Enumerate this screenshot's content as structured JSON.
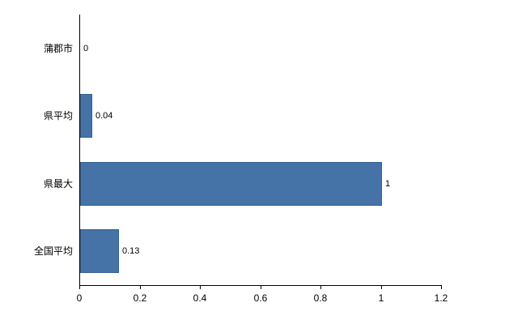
{
  "chart_data": {
    "type": "bar",
    "orientation": "horizontal",
    "title": "",
    "xlabel": "",
    "ylabel": "",
    "categories": [
      "蒲郡市",
      "県平均",
      "県最大",
      "全国平均"
    ],
    "values": [
      0,
      0.04,
      1,
      0.13
    ],
    "value_labels": [
      "0",
      "0.04",
      "1",
      "0.13"
    ],
    "xlim": [
      0,
      1.2
    ],
    "xticks": [
      0,
      0.2,
      0.4,
      0.6,
      0.8,
      1,
      1.2
    ],
    "xtick_labels": [
      "0",
      "0.2",
      "0.4",
      "0.6",
      "0.8",
      "1",
      "1.2"
    ],
    "grid": false,
    "legend": false,
    "bar_color": "#4573a7",
    "bar_border_color": "#35618f",
    "axis_color": "#000000",
    "background_color": "#ffffff"
  }
}
